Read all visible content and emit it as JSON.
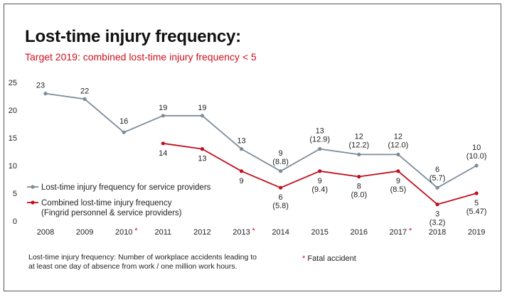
{
  "chart_data": {
    "type": "line",
    "title": "Lost-time injury frequency:",
    "subtitle": "Target 2019: combined lost-time injury frequency < 5",
    "ylim": [
      0,
      25
    ],
    "yticks": [
      0,
      5,
      10,
      15,
      20,
      25
    ],
    "x": [
      "2008",
      "2009",
      "2010",
      "2011",
      "2012",
      "2013",
      "2014",
      "2015",
      "2016",
      "2017",
      "2018",
      "2019"
    ],
    "fatal_years": [
      "2010",
      "2013",
      "2017"
    ],
    "grid": false,
    "legend_position": "left",
    "series": [
      {
        "name": "Lost-time injury frequency for service providers",
        "color": "#7d8c99",
        "values": [
          23,
          22,
          16,
          19,
          19,
          13,
          9,
          13,
          12,
          12,
          6,
          10
        ],
        "labels": [
          "23",
          "22",
          "16",
          "19",
          "19",
          "13",
          "9",
          "13",
          "12",
          "12",
          "6",
          "10"
        ],
        "sublabels": [
          "",
          "",
          "",
          "",
          "",
          "",
          "(8.8)",
          "(12.9)",
          "(12.2)",
          "(12.0)",
          "(5.7)",
          "(10.0)"
        ]
      },
      {
        "name": "Combined lost-time injury frequency",
        "name_line2": "(Fingrid personnel & service providers)",
        "color": "#c0101e",
        "values": [
          null,
          null,
          null,
          14,
          13,
          9,
          6,
          9,
          8,
          9,
          3,
          5
        ],
        "labels": [
          "",
          "",
          "",
          "14",
          "13",
          "9",
          "6",
          "9",
          "8",
          "9",
          "3",
          "5"
        ],
        "sublabels": [
          "",
          "",
          "",
          "",
          "",
          "",
          "(5.8)",
          "(9.4)",
          "(8.0)",
          "(8.5)",
          "(3.2)",
          "(5.47)"
        ]
      }
    ]
  },
  "footnote": "Lost-time injury frequency: Number of workplace accidents leading to at least one day of absence from work / one million work hours.",
  "fatal_marker": "*",
  "fatal_label": "Fatal accident",
  "colors": {
    "accent_red": "#d0101e",
    "gray_line": "#7d8c99",
    "red_line": "#c0101e"
  }
}
